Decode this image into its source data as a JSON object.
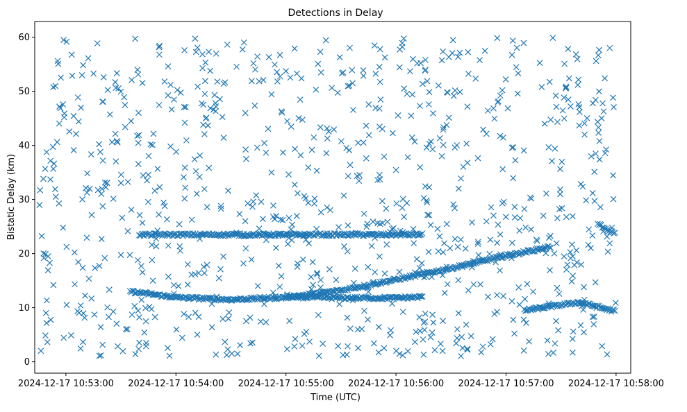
{
  "chart_data": {
    "type": "scatter",
    "title": "Detections in Delay",
    "xlabel": "Time (UTC)",
    "ylabel": "Bistatic Delay (km)",
    "x_ticks": [
      "2024-12-17 10:53:00",
      "2024-12-17 10:54:00",
      "2024-12-17 10:55:00",
      "2024-12-17 10:56:00",
      "2024-12-17 10:57:00",
      "2024-12-17 10:58:00"
    ],
    "y_ticks": [
      0,
      10,
      20,
      30,
      40,
      50,
      60
    ],
    "xlim": [
      "2024-12-17 10:52:43",
      "2024-12-17 10:58:08"
    ],
    "ylim": [
      -2.1,
      62.9
    ],
    "marker": "x",
    "color": "#1f77b4",
    "grid": false,
    "tracks": [
      {
        "description": "slowly varying track",
        "x": [
          "2024-12-17 10:53:35",
          "2024-12-17 10:54:00",
          "2024-12-17 10:54:30",
          "2024-12-17 10:55:00",
          "2024-12-17 10:55:30",
          "2024-12-17 10:56:00",
          "2024-12-17 10:56:30",
          "2024-12-17 10:57:00",
          "2024-12-17 10:57:25"
        ],
        "y": [
          13.0,
          11.9,
          11.5,
          11.9,
          13.2,
          15.2,
          17.3,
          19.6,
          21.3
        ]
      },
      {
        "description": "constant track",
        "x": [
          "2024-12-17 10:53:40",
          "2024-12-17 10:54:15",
          "2024-12-17 10:55:00",
          "2024-12-17 10:55:40",
          "2024-12-17 10:56:15"
        ],
        "y": [
          23.5,
          23.5,
          23.5,
          23.5,
          23.5
        ]
      },
      {
        "description": "lower track",
        "x": [
          "2024-12-17 10:55:00",
          "2024-12-17 10:55:30",
          "2024-12-17 10:56:00",
          "2024-12-17 10:56:15"
        ],
        "y": [
          12.0,
          11.8,
          11.8,
          12.0
        ]
      },
      {
        "description": "right cluster upper",
        "x": [
          "2024-12-17 10:57:50",
          "2024-12-17 10:58:00"
        ],
        "y": [
          25.5,
          23.5
        ]
      },
      {
        "description": "right cluster lower",
        "x": [
          "2024-12-17 10:57:10",
          "2024-12-17 10:57:40",
          "2024-12-17 10:58:00"
        ],
        "y": [
          9.5,
          11.0,
          9.3
        ]
      }
    ],
    "scatter_noise": {
      "y_range": [
        1,
        60
      ],
      "x_range": [
        "2024-12-17 10:52:45",
        "2024-12-17 10:58:00"
      ],
      "approx_points": 900
    }
  }
}
